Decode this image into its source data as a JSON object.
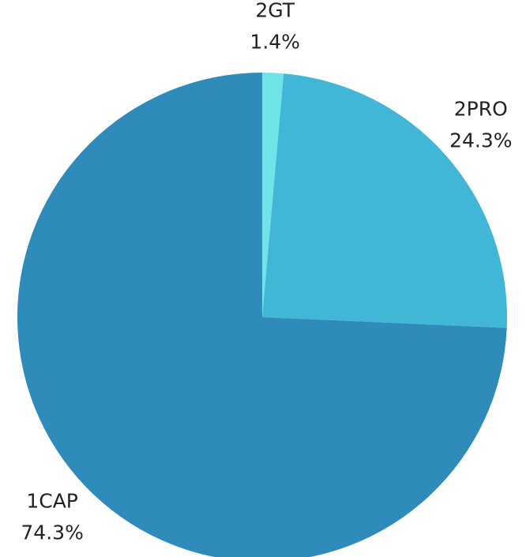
{
  "chart_data": {
    "type": "pie",
    "categories": [
      "2GT",
      "2PRO",
      "1CAP"
    ],
    "values": [
      1.4,
      24.3,
      74.3
    ],
    "value_labels": [
      "1.4%",
      "24.3%",
      "74.3%"
    ],
    "colors": [
      "#6ee3e8",
      "#42b6d6",
      "#2e8bba"
    ]
  }
}
